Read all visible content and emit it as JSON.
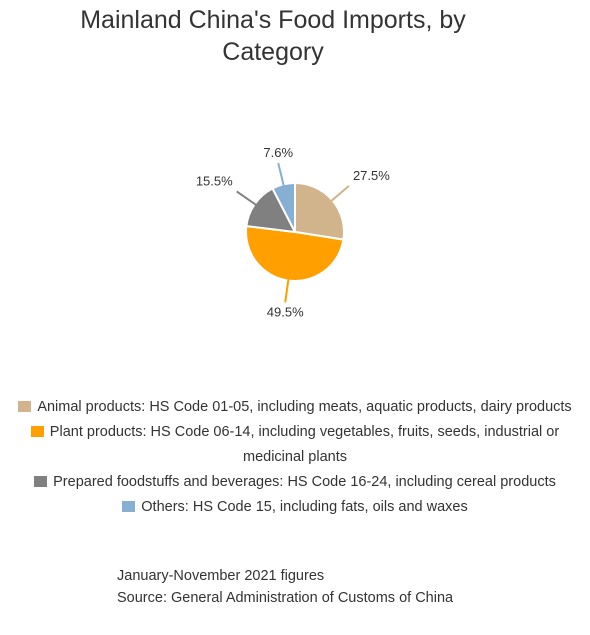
{
  "chart_data": {
    "type": "pie",
    "title_lines": [
      "Mainland China's Food Imports, by",
      "Category"
    ],
    "slices": [
      {
        "name": "Animal products: HS Code 01-05, including meats, aquatic products, dairy products",
        "value": 27.5,
        "label": "27.5%",
        "color": "#d2b48c"
      },
      {
        "name": "Plant products: HS Code 06-14, including vegetables, fruits, seeds, industrial or medicinal plants",
        "value": 49.5,
        "label": "49.5%",
        "color": "#ff9f00"
      },
      {
        "name": "Prepared foodstuffs and beverages: HS Code 16-24, including cereal products",
        "value": 15.5,
        "label": "15.5%",
        "color": "#808080"
      },
      {
        "name": "Others: HS Code 15, including fats, oils and waxes",
        "value": 7.6,
        "label": "7.6%",
        "color": "#87aed3"
      }
    ],
    "legend_position": "bottom",
    "notes": [
      "January-November 2021 figures",
      "Source: General Administration of Customs of China"
    ]
  }
}
